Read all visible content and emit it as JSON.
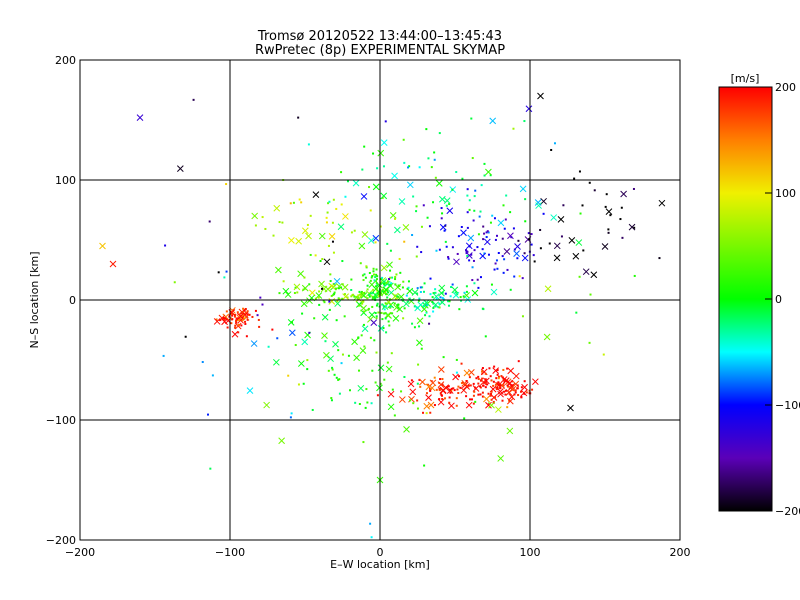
{
  "chart_data": [
    {
      "type": "scatter",
      "title": "Tromsø 20120522 13:44:00–13:45:43",
      "subtitle": "RwPretec (8p) EXPERIMENTAL SKYMAP",
      "xlabel": "E–W location [km]",
      "ylabel": "N–S location [km]",
      "xlim": [
        -200,
        200
      ],
      "ylim": [
        -200,
        200
      ],
      "x_ticks": [
        -200,
        -100,
        0,
        100,
        200
      ],
      "y_ticks": [
        -200,
        -100,
        0,
        100,
        200
      ],
      "x_tick_labels": [
        "−200",
        "−100",
        "0",
        "100",
        "200"
      ],
      "y_tick_labels": [
        "−200",
        "−100",
        "0",
        "100",
        "200"
      ],
      "grid_lines_x": [
        -100,
        0,
        100
      ],
      "grid_lines_y": [
        -100,
        0,
        100
      ],
      "color_by": "line-of-sight velocity",
      "marker_styles": [
        "cross",
        "dot"
      ],
      "clusters": [
        {
          "x": 80,
          "y": -72,
          "spread_x": 12,
          "spread_y": 8,
          "velocity": 200,
          "count": 140
        },
        {
          "x": 40,
          "y": -75,
          "spread_x": 12,
          "spread_y": 7,
          "velocity": 190,
          "count": 70
        },
        {
          "x": -95,
          "y": -15,
          "spread_x": 7,
          "spread_y": 5,
          "velocity": 185,
          "count": 70
        },
        {
          "x": 0,
          "y": 5,
          "spread_x": 9,
          "spread_y": 12,
          "velocity": 10,
          "count": 150
        },
        {
          "x": -30,
          "y": 5,
          "spread_x": 18,
          "spread_y": 6,
          "velocity": 40,
          "count": 70
        },
        {
          "x": 35,
          "y": 2,
          "spread_x": 15,
          "spread_y": 6,
          "velocity": -30,
          "count": 80
        },
        {
          "x": 70,
          "y": 45,
          "spread_x": 20,
          "spread_y": 20,
          "velocity": -120,
          "count": 90
        },
        {
          "x": 130,
          "y": 60,
          "spread_x": 25,
          "spread_y": 25,
          "velocity": -200,
          "count": 40
        },
        {
          "x": -10,
          "y": -50,
          "spread_x": 28,
          "spread_y": 30,
          "velocity": 10,
          "count": 80
        },
        {
          "x": -40,
          "y": 60,
          "spread_x": 30,
          "spread_y": 25,
          "velocity": 70,
          "count": 60
        },
        {
          "x": 30,
          "y": 100,
          "spread_x": 40,
          "spread_y": 30,
          "velocity": -20,
          "count": 60
        },
        {
          "x": 0,
          "y": 0,
          "spread_x": 90,
          "spread_y": 80,
          "velocity": 60,
          "count": 120
        }
      ],
      "labeled_outliers": [
        {
          "x": -160,
          "y": 152,
          "velocity": -130
        },
        {
          "x": 107,
          "y": 170,
          "velocity": -200
        },
        {
          "x": 127,
          "y": -90,
          "velocity": -200
        },
        {
          "x": -185,
          "y": 45,
          "velocity": 120
        },
        {
          "x": -178,
          "y": 30,
          "velocity": 190
        },
        {
          "x": 0,
          "y": -150,
          "velocity": 20
        }
      ]
    },
    {
      "type": "heatmap",
      "role": "colorbar",
      "title": "[m/s]",
      "ylim": [
        -200,
        200
      ],
      "ticks": [
        200,
        100,
        0,
        -100,
        -200
      ],
      "tick_labels": [
        "200",
        "100",
        "0",
        "−100",
        "−200"
      ],
      "colormap": [
        {
          "v": 200,
          "color": "#ff0000"
        },
        {
          "v": 150,
          "color": "#ff7f00"
        },
        {
          "v": 100,
          "color": "#f0f000"
        },
        {
          "v": 0,
          "color": "#00ff00"
        },
        {
          "v": -50,
          "color": "#00ffff"
        },
        {
          "v": -100,
          "color": "#0000ff"
        },
        {
          "v": -150,
          "color": "#5b00b8"
        },
        {
          "v": -200,
          "color": "#000000"
        }
      ]
    }
  ]
}
